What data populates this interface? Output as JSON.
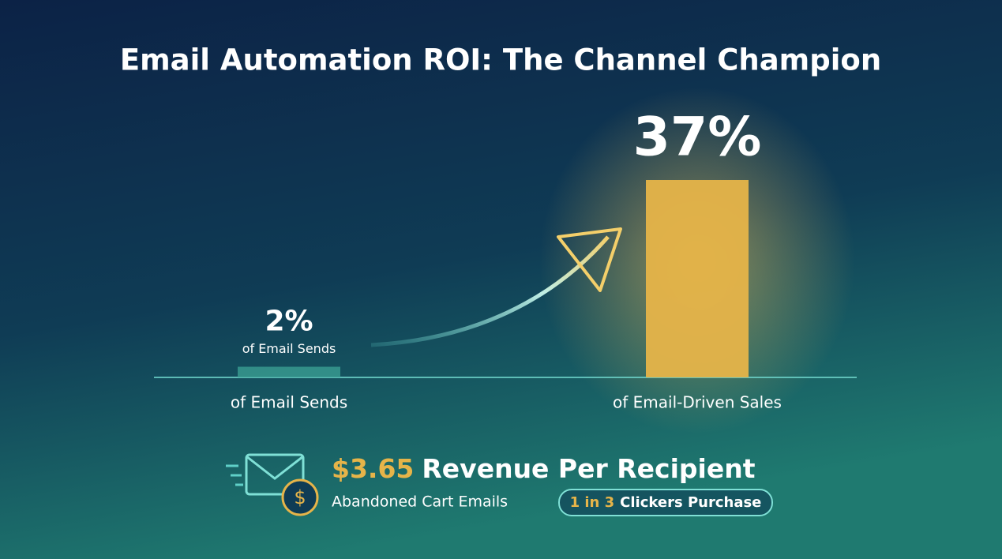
{
  "chart_data": {
    "type": "bar",
    "title": "Email Automation ROI: The Channel Champion",
    "categories": [
      "of Email Sends",
      "of Email-Driven Sales"
    ],
    "values": [
      2,
      37
    ],
    "value_labels": [
      "2%",
      "37%"
    ],
    "colors": [
      "#3a9e92",
      "#e6b449"
    ],
    "annotation": "of Email Sends",
    "callout": {
      "highlight": "$3.65",
      "text": "Revenue Per Recipient",
      "subtext": "Abandoned Cart Emails",
      "badge_highlight": "1 in 3",
      "badge_text": "Clickers Purchase"
    }
  }
}
